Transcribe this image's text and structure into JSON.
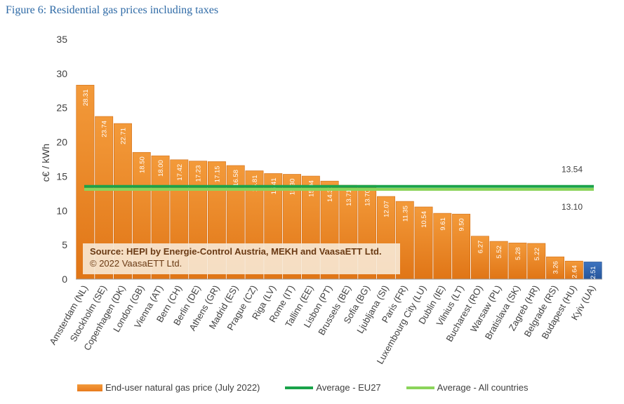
{
  "figure_title": "Figure 6: Residential gas prices including taxes",
  "source": {
    "line1": "Source: HEPI by Energie-Control Austria, MEKH and VaasaETT Ltd.",
    "line2": "© 2022 VaasaETT Ltd."
  },
  "legend": {
    "bars": "End-user natural gas price (July 2022)",
    "eu27": "Average - EU27",
    "all": "Average - All countries"
  },
  "colors": {
    "bar": "#e87a1c",
    "bar_light": "#f6a552",
    "highlight_bar": "#2f62a8",
    "eu27_line": "#1aa34a",
    "all_line": "#8bd45a"
  },
  "chart_data": {
    "type": "bar",
    "ylabel": "c€ / kWh",
    "xlabel": "",
    "ylim": [
      0,
      35
    ],
    "yticks": [
      0,
      5,
      10,
      15,
      20,
      25,
      30,
      35
    ],
    "grid": false,
    "legend_position": "bottom",
    "categories": [
      "Amsterdam (NL)",
      "Stockholm (SE)",
      "Copenhagen (DK)",
      "London (GB)",
      "Vienna (AT)",
      "Bern (CH)",
      "Berlin (DE)",
      "Athens (GR)",
      "Madrid (ES)",
      "Prague (CZ)",
      "Riga (LV)",
      "Rome (IT)",
      "Tallinn (EE)",
      "Lisbon (PT)",
      "Brussels (BE)",
      "Sofia (BG)",
      "Ljubljana (SI)",
      "Paris (FR)",
      "Luxembourg City (LU)",
      "Dublin (IE)",
      "Vilnius (LT)",
      "Bucharest (RO)",
      "Warsaw (PL)",
      "Bratislava (SK)",
      "Zagreb (HR)",
      "Belgrade (RS)",
      "Budapest (HU)",
      "Kyiv (UA)"
    ],
    "value_labels": [
      "28.31",
      "23.74",
      "22.71",
      "18.50",
      "18.00",
      "17.42",
      "17.23",
      "17.15",
      "16.58",
      "15.81",
      "15.41",
      "15.30",
      "15.04",
      "14.31",
      "13.71",
      "13.70",
      "12.07",
      "11.35",
      "10.54",
      "9.61",
      "9.50",
      "6.27",
      "5.52",
      "5.28",
      "5.22",
      "3.26",
      "2.64",
      "2.51"
    ],
    "series": [
      {
        "name": "End-user natural gas price (July 2022)",
        "values": [
          28.31,
          23.74,
          22.71,
          18.5,
          18.0,
          17.42,
          17.23,
          17.15,
          16.58,
          15.81,
          15.41,
          15.3,
          15.04,
          14.31,
          13.71,
          13.7,
          12.07,
          11.35,
          10.54,
          9.61,
          9.5,
          6.27,
          5.52,
          5.28,
          5.22,
          3.26,
          2.64,
          2.51
        ],
        "highlight_last": true
      },
      {
        "name": "Average - EU27",
        "constant": 13.54,
        "label": "13.54"
      },
      {
        "name": "Average - All countries",
        "constant": 13.1,
        "label": "13.10"
      }
    ]
  }
}
